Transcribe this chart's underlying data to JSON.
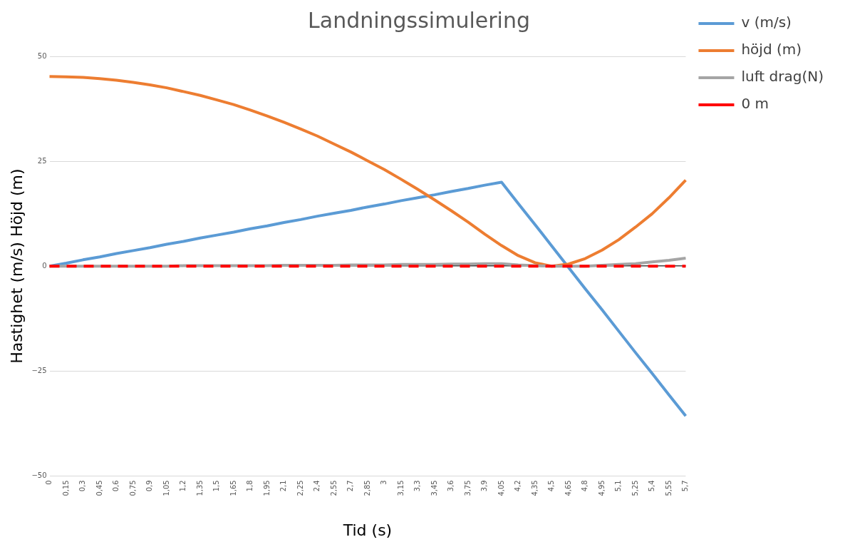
{
  "chart_data": {
    "type": "line",
    "title": "Landningssimulering",
    "xlabel": "Tid (s)",
    "ylabel": "Hastighet (m/s) Höjd (m)",
    "categories": [
      "0",
      "0,15",
      "0,3",
      "0,45",
      "0,6",
      "0,75",
      "0,9",
      "1,05",
      "1,2",
      "1,35",
      "1,5",
      "1,65",
      "1,8",
      "1,95",
      "2,1",
      "2,25",
      "2,4",
      "2,55",
      "2,7",
      "2,85",
      "3",
      "3,15",
      "3,3",
      "3,45",
      "3,6",
      "3,75",
      "3,9",
      "4,05",
      "4,2",
      "4,35",
      "4,5",
      "4,65",
      "4,8",
      "4,95",
      "5,1",
      "5,25",
      "5,4",
      "5,55",
      "5,7"
    ],
    "series": [
      {
        "name": "v (m/s)",
        "color": "#5b9bd5",
        "values": [
          0,
          0.7,
          1.5,
          2.2,
          3.0,
          3.7,
          4.4,
          5.2,
          5.9,
          6.7,
          7.4,
          8.1,
          8.9,
          9.6,
          10.4,
          11.1,
          11.9,
          12.6,
          13.3,
          14.1,
          14.8,
          15.6,
          16.3,
          17.0,
          17.8,
          18.5,
          19.3,
          20,
          14.9,
          9.9,
          4.8,
          -0.3,
          -5.4,
          -10.4,
          -15.5,
          -20.6,
          -25.6,
          -30.7,
          -35.7
        ]
      },
      {
        "name": "höjd (m)",
        "color": "#ed7d31",
        "values": [
          45.2,
          45.1,
          45.0,
          44.7,
          44.3,
          43.8,
          43.2,
          42.5,
          41.6,
          40.7,
          39.6,
          38.5,
          37.2,
          35.8,
          34.3,
          32.7,
          31.0,
          29.1,
          27.2,
          25.1,
          23.0,
          20.7,
          18.3,
          15.8,
          13.2,
          10.5,
          7.6,
          4.9,
          2.5,
          0.8,
          0,
          0.5,
          1.8,
          3.8,
          6.3,
          9.3,
          12.5,
          16.3,
          20.5
        ]
      },
      {
        "name": "luft drag(N)",
        "color": "#a5a5a5",
        "values": [
          0,
          0,
          0,
          0,
          0,
          0,
          0,
          0,
          0.1,
          0.1,
          0.1,
          0.1,
          0.1,
          0.1,
          0.2,
          0.2,
          0.2,
          0.2,
          0.3,
          0.3,
          0.3,
          0.4,
          0.4,
          0.4,
          0.5,
          0.5,
          0.6,
          0.6,
          0.3,
          0.1,
          0,
          0,
          0,
          0.2,
          0.4,
          0.6,
          1.0,
          1.4,
          1.9
        ]
      },
      {
        "name": "0 m",
        "color": "#ff0000",
        "line_style": "dashed",
        "values": [
          0,
          0,
          0,
          0,
          0,
          0,
          0,
          0,
          0,
          0,
          0,
          0,
          0,
          0,
          0,
          0,
          0,
          0,
          0,
          0,
          0,
          0,
          0,
          0,
          0,
          0,
          0,
          0,
          0,
          0,
          0,
          0,
          0,
          0,
          0,
          0,
          0,
          0,
          0
        ]
      }
    ],
    "ylim": [
      -50,
      50
    ],
    "yticks": [
      -50,
      -25,
      0,
      25,
      50
    ],
    "grid": "y",
    "legend": "right",
    "marker": "none"
  }
}
